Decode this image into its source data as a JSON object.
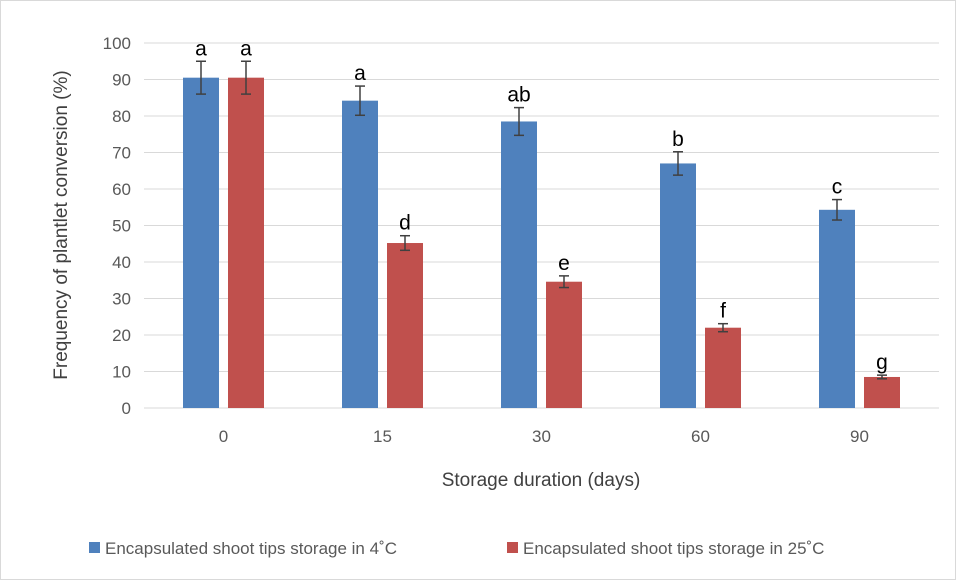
{
  "chart_data": {
    "type": "bar",
    "ylabel": "Frequency of plantlet conversion (%)",
    "xlabel": "Storage duration (days)",
    "categories": [
      "0",
      "15",
      "30",
      "60",
      "90"
    ],
    "ylim": [
      0,
      100
    ],
    "ytick_step": 10,
    "grid": true,
    "legend_position": "bottom",
    "series": [
      {
        "name": "Encapsulated shoot tips storage in 4˚C",
        "color": "#4f81bd",
        "values": [
          90.5,
          84.2,
          78.5,
          67.0,
          54.3
        ],
        "errors": [
          4.5,
          4.0,
          3.8,
          3.2,
          2.8
        ],
        "labels": [
          "a",
          "a",
          "ab",
          "b",
          "c"
        ]
      },
      {
        "name": "Encapsulated shoot tips storage in 25˚C",
        "color": "#c0504d",
        "values": [
          90.5,
          45.2,
          34.6,
          22.0,
          8.5
        ],
        "errors": [
          4.5,
          2.0,
          1.6,
          1.1,
          0.5
        ],
        "labels": [
          "a",
          "d",
          "e",
          "f",
          "g"
        ]
      }
    ]
  }
}
